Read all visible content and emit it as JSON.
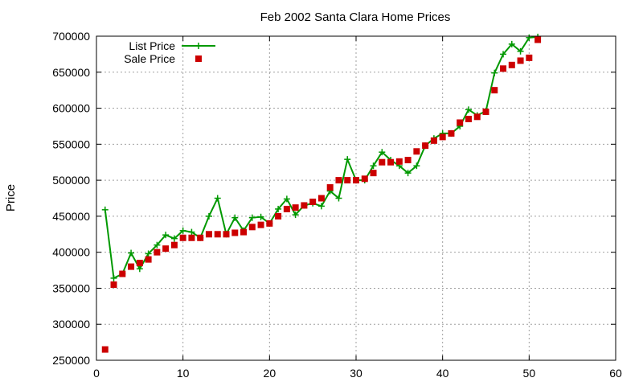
{
  "chart_data": {
    "type": "line",
    "title": "Feb 2002 Santa Clara Home Prices",
    "xlabel": "",
    "ylabel": "Price",
    "xlim": [
      0,
      60
    ],
    "ylim": [
      250000,
      700000
    ],
    "xticks": [
      0,
      10,
      20,
      30,
      40,
      50,
      60
    ],
    "yticks": [
      250000,
      300000,
      350000,
      400000,
      450000,
      500000,
      550000,
      600000,
      650000,
      700000
    ],
    "grid": true,
    "legend_position": "top-left",
    "series": [
      {
        "name": "List Price",
        "style": "line-plus",
        "color": "#009900",
        "x": [
          1,
          2,
          3,
          4,
          5,
          6,
          7,
          8,
          9,
          10,
          11,
          12,
          13,
          14,
          15,
          16,
          17,
          18,
          19,
          20,
          21,
          22,
          23,
          24,
          25,
          26,
          27,
          28,
          29,
          30,
          31,
          32,
          33,
          34,
          35,
          36,
          37,
          38,
          39,
          40,
          41,
          42,
          43,
          44,
          45,
          46,
          47,
          48,
          49,
          50,
          51
        ],
        "y": [
          459000,
          364000,
          370000,
          399000,
          377000,
          398000,
          410000,
          424000,
          419000,
          430000,
          428000,
          420000,
          450000,
          475000,
          425000,
          448000,
          430000,
          448000,
          449000,
          440000,
          460000,
          474000,
          452000,
          465000,
          468000,
          464000,
          485000,
          475000,
          529000,
          500000,
          500000,
          520000,
          539000,
          528000,
          520000,
          510000,
          520000,
          548000,
          558000,
          565000,
          565000,
          575000,
          598000,
          590000,
          596000,
          649000,
          675000,
          689000,
          679000,
          698000,
          699000
        ]
      },
      {
        "name": "Sale Price",
        "style": "square",
        "color": "#cc0000",
        "x": [
          1,
          2,
          3,
          4,
          5,
          6,
          7,
          8,
          9,
          10,
          11,
          12,
          13,
          14,
          15,
          16,
          17,
          18,
          19,
          20,
          21,
          22,
          23,
          24,
          25,
          26,
          27,
          28,
          29,
          30,
          31,
          32,
          33,
          34,
          35,
          36,
          37,
          38,
          39,
          40,
          41,
          42,
          43,
          44,
          45,
          46,
          47,
          48,
          49,
          50,
          51
        ],
        "y": [
          265000,
          355000,
          370000,
          380000,
          385000,
          390000,
          400000,
          405000,
          410000,
          420000,
          420000,
          420000,
          425000,
          425000,
          425000,
          427000,
          428000,
          435000,
          438000,
          440000,
          450000,
          460000,
          462000,
          465000,
          470000,
          475000,
          490000,
          500000,
          500000,
          500000,
          502000,
          510000,
          525000,
          525000,
          526000,
          528000,
          540000,
          548000,
          555000,
          560000,
          565000,
          580000,
          585000,
          588000,
          595000,
          625000,
          655000,
          660000,
          666000,
          670000,
          695000
        ]
      }
    ]
  }
}
